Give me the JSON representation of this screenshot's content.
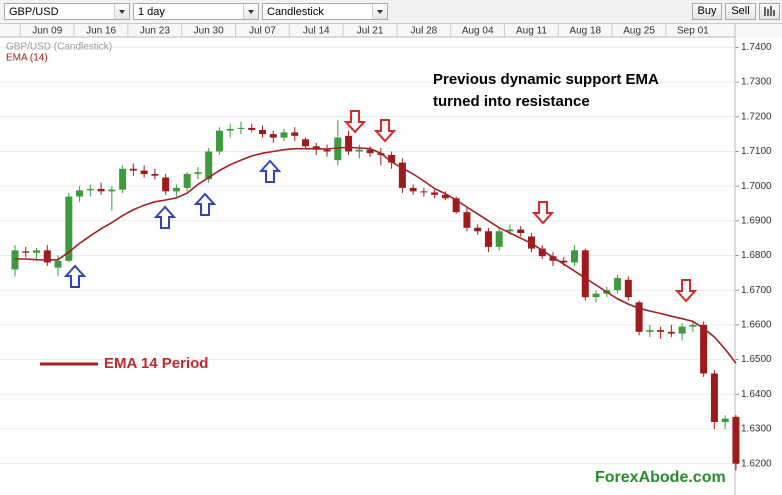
{
  "toolbar": {
    "symbol": "GBP/USD",
    "interval": "1 day",
    "chart_style": "Candlestick",
    "buy": "Buy",
    "sell": "Sell"
  },
  "chart_data": {
    "type": "candlestick",
    "categories": [
      null,
      null,
      null,
      "Jun 09",
      null,
      null,
      null,
      null,
      "Jun 16",
      null,
      null,
      null,
      null,
      "Jun 23",
      null,
      null,
      null,
      null,
      "Jun 30",
      null,
      null,
      null,
      null,
      "Jul 07",
      null,
      null,
      null,
      null,
      "Jul 14",
      null,
      null,
      null,
      null,
      "Jul 21",
      null,
      null,
      null,
      null,
      "Jul 28",
      null,
      null,
      null,
      null,
      "Aug 04",
      null,
      null,
      null,
      null,
      "Aug 11",
      null,
      null,
      null,
      null,
      "Aug 18",
      null,
      null,
      null,
      null,
      "Aug 25",
      null,
      null,
      null,
      null,
      "Sep 01",
      null,
      null,
      null,
      null
    ],
    "series": [
      {
        "name": "GBP/USD (Candlestick)",
        "up_color": "#3d9a3d",
        "down_color": "#9e1b1b",
        "open": [
          1.676,
          1.6812,
          1.6808,
          1.6815,
          1.6765,
          1.6785,
          1.697,
          1.6988,
          1.6992,
          1.6985,
          1.699,
          1.705,
          1.7045,
          1.7035,
          1.7025,
          1.6985,
          1.6995,
          1.7035,
          1.702,
          1.71,
          1.716,
          1.7165,
          1.7168,
          1.7162,
          1.715,
          1.714,
          1.7155,
          1.7135,
          1.7115,
          1.7105,
          1.7075,
          1.7145,
          1.71,
          1.7105,
          1.7095,
          1.709,
          1.7068,
          1.6995,
          1.6985,
          1.6982,
          1.6975,
          1.6965,
          1.6925,
          1.688,
          1.687,
          1.6825,
          1.687,
          1.6875,
          1.6855,
          1.682,
          1.6798,
          1.6785,
          1.678,
          1.6815,
          1.668,
          1.669,
          1.67,
          1.673,
          1.6665,
          1.658,
          1.6585,
          1.658,
          1.6575,
          1.6595,
          1.66,
          1.646,
          1.632,
          1.6335
        ],
        "high": [
          1.683,
          1.6825,
          1.6822,
          1.683,
          1.68,
          1.698,
          1.7,
          1.7005,
          1.701,
          1.7,
          1.706,
          1.7065,
          1.706,
          1.705,
          1.7035,
          1.7005,
          1.704,
          1.7055,
          1.711,
          1.717,
          1.718,
          1.7185,
          1.718,
          1.7175,
          1.716,
          1.7165,
          1.717,
          1.714,
          1.7125,
          1.712,
          1.719,
          1.716,
          1.712,
          1.7115,
          1.711,
          1.71,
          1.708,
          1.7005,
          1.6995,
          1.699,
          1.6985,
          1.697,
          1.694,
          1.689,
          1.688,
          1.688,
          1.689,
          1.6885,
          1.6865,
          1.683,
          1.681,
          1.6795,
          1.683,
          1.682,
          1.67,
          1.671,
          1.6745,
          1.674,
          1.667,
          1.66,
          1.6595,
          1.66,
          1.6605,
          1.661,
          1.661,
          1.647,
          1.634,
          1.634
        ],
        "low": [
          1.674,
          1.6795,
          1.679,
          1.677,
          1.674,
          1.678,
          1.6955,
          1.697,
          1.6975,
          1.693,
          1.698,
          1.703,
          1.7025,
          1.702,
          1.6975,
          1.697,
          1.6985,
          1.702,
          1.701,
          1.709,
          1.714,
          1.715,
          1.7155,
          1.714,
          1.7125,
          1.713,
          1.713,
          1.711,
          1.709,
          1.7085,
          1.706,
          1.709,
          1.708,
          1.7085,
          1.706,
          1.705,
          1.698,
          1.6975,
          1.697,
          1.6965,
          1.696,
          1.692,
          1.687,
          1.686,
          1.681,
          1.6815,
          1.686,
          1.6855,
          1.681,
          1.679,
          1.677,
          1.677,
          1.677,
          1.667,
          1.6665,
          1.668,
          1.669,
          1.667,
          1.657,
          1.6565,
          1.656,
          1.6565,
          1.6555,
          1.658,
          1.645,
          1.63,
          1.63,
          1.618
        ],
        "close": [
          1.6815,
          1.6808,
          1.6815,
          1.678,
          1.6785,
          1.697,
          1.6988,
          1.6992,
          1.6985,
          1.699,
          1.705,
          1.7045,
          1.7035,
          1.703,
          1.6985,
          1.6995,
          1.7035,
          1.704,
          1.71,
          1.716,
          1.7165,
          1.7168,
          1.7162,
          1.715,
          1.714,
          1.7155,
          1.7145,
          1.7115,
          1.7105,
          1.71,
          1.714,
          1.71,
          1.7105,
          1.7095,
          1.709,
          1.7068,
          1.6995,
          1.6985,
          1.6982,
          1.6975,
          1.6965,
          1.6925,
          1.688,
          1.687,
          1.6825,
          1.687,
          1.6875,
          1.6865,
          1.682,
          1.6798,
          1.6785,
          1.678,
          1.6815,
          1.668,
          1.669,
          1.67,
          1.6735,
          1.668,
          1.658,
          1.6585,
          1.658,
          1.6575,
          1.6595,
          1.66,
          1.646,
          1.632,
          1.633,
          1.62
        ]
      },
      {
        "name": "EMA (14)",
        "color": "#a31f24",
        "values": [
          1.679,
          1.679,
          1.6788,
          1.6787,
          1.6788,
          1.681,
          1.6835,
          1.6857,
          1.6877,
          1.6895,
          1.6915,
          1.6932,
          1.6945,
          1.6955,
          1.696,
          1.6966,
          1.698,
          1.7005,
          1.7025,
          1.7045,
          1.7062,
          1.7075,
          1.7087,
          1.7095,
          1.71,
          1.7105,
          1.7108,
          1.7108,
          1.7108,
          1.7107,
          1.711,
          1.7112,
          1.711,
          1.7108,
          1.7095,
          1.707,
          1.7052,
          1.7035,
          1.7015,
          1.6993,
          1.6978,
          1.696,
          1.694,
          1.692,
          1.69,
          1.688,
          1.6865,
          1.685,
          1.6835,
          1.6815,
          1.6795,
          1.6775,
          1.6755,
          1.6735,
          1.6715,
          1.6695,
          1.6675,
          1.666,
          1.6648,
          1.664,
          1.6633,
          1.6625,
          1.6618,
          1.661,
          1.659,
          1.6565,
          1.653,
          1.649
        ]
      }
    ],
    "ylim": [
      1.615,
      1.743
    ],
    "yticks": [
      {
        "value": 1.62,
        "label": "1.6200"
      },
      {
        "value": 1.63,
        "label": "1.6300"
      },
      {
        "value": 1.64,
        "label": "1.6400"
      },
      {
        "value": 1.65,
        "label": "1.6500"
      },
      {
        "value": 1.66,
        "label": "1.6600"
      },
      {
        "value": 1.67,
        "label": "1.6700"
      },
      {
        "value": 1.68,
        "label": "1.6800"
      },
      {
        "value": 1.69,
        "label": "1.6900"
      },
      {
        "value": 1.7,
        "label": "1.7000"
      },
      {
        "value": 1.71,
        "label": "1.7100"
      },
      {
        "value": 1.72,
        "label": "1.7200"
      },
      {
        "value": 1.73,
        "label": "1.7300"
      },
      {
        "value": 1.74,
        "label": "1.7400"
      }
    ],
    "grid": true,
    "annotation": [
      "Previous dynamic support EMA",
      "turned into resistance"
    ],
    "legend_note": "EMA 14 Period",
    "watermark": "ForexAbode.com"
  }
}
